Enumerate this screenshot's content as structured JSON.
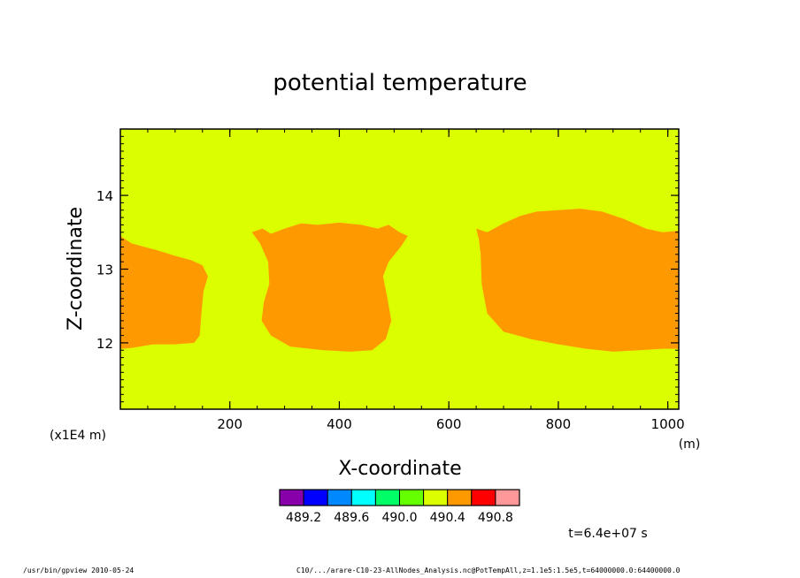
{
  "chart_data": {
    "type": "heatmap",
    "title": "potential temperature",
    "xlabel": "X-coordinate",
    "ylabel": "Z-coordinate",
    "x_unit": "(m)",
    "y_scale_label": "(x1E4 m)",
    "xlim": [
      0,
      1020
    ],
    "ylim": [
      11.1,
      14.9
    ],
    "x_ticks": [
      "200",
      "400",
      "600",
      "800",
      "1000"
    ],
    "x_tick_values": [
      200,
      400,
      600,
      800,
      1000
    ],
    "y_ticks": [
      "12",
      "13",
      "14"
    ],
    "y_tick_values": [
      12,
      13,
      14
    ],
    "background_color": "#dcff00",
    "region_color": "#ff9900",
    "background_level": "490.2 - 490.4",
    "region_level": "490.4 - 490.6",
    "regions": [
      {
        "name": "left",
        "outline": [
          [
            0,
            13.45
          ],
          [
            20,
            13.35
          ],
          [
            45,
            13.3
          ],
          [
            70,
            13.25
          ],
          [
            100,
            13.18
          ],
          [
            130,
            13.12
          ],
          [
            150,
            13.05
          ],
          [
            160,
            12.9
          ],
          [
            152,
            12.7
          ],
          [
            148,
            12.4
          ],
          [
            145,
            12.1
          ],
          [
            135,
            12.0
          ],
          [
            100,
            11.98
          ],
          [
            60,
            11.98
          ],
          [
            20,
            11.93
          ],
          [
            0,
            11.92
          ]
        ]
      },
      {
        "name": "middle",
        "outline": [
          [
            240,
            13.5
          ],
          [
            260,
            13.55
          ],
          [
            275,
            13.48
          ],
          [
            300,
            13.55
          ],
          [
            330,
            13.62
          ],
          [
            360,
            13.6
          ],
          [
            400,
            13.63
          ],
          [
            440,
            13.6
          ],
          [
            470,
            13.55
          ],
          [
            490,
            13.6
          ],
          [
            510,
            13.5
          ],
          [
            525,
            13.45
          ],
          [
            512,
            13.3
          ],
          [
            490,
            13.1
          ],
          [
            480,
            12.9
          ],
          [
            488,
            12.6
          ],
          [
            495,
            12.3
          ],
          [
            485,
            12.05
          ],
          [
            460,
            11.9
          ],
          [
            420,
            11.88
          ],
          [
            370,
            11.9
          ],
          [
            310,
            11.95
          ],
          [
            275,
            12.1
          ],
          [
            258,
            12.3
          ],
          [
            262,
            12.55
          ],
          [
            272,
            12.8
          ],
          [
            270,
            13.1
          ],
          [
            255,
            13.35
          ]
        ]
      },
      {
        "name": "right",
        "outline": [
          [
            650,
            13.55
          ],
          [
            670,
            13.5
          ],
          [
            700,
            13.62
          ],
          [
            730,
            13.72
          ],
          [
            760,
            13.78
          ],
          [
            800,
            13.8
          ],
          [
            840,
            13.82
          ],
          [
            880,
            13.78
          ],
          [
            920,
            13.68
          ],
          [
            960,
            13.55
          ],
          [
            990,
            13.5
          ],
          [
            1020,
            13.52
          ],
          [
            1020,
            11.92
          ],
          [
            990,
            11.92
          ],
          [
            950,
            11.9
          ],
          [
            900,
            11.88
          ],
          [
            850,
            11.92
          ],
          [
            800,
            11.98
          ],
          [
            750,
            12.05
          ],
          [
            700,
            12.15
          ],
          [
            670,
            12.4
          ],
          [
            660,
            12.8
          ],
          [
            658,
            13.2
          ],
          [
            655,
            13.4
          ]
        ]
      }
    ],
    "colorbar": {
      "colors": [
        "#8800aa",
        "#0000ff",
        "#0088ff",
        "#00ffff",
        "#00ff66",
        "#66ff00",
        "#dcff00",
        "#ff9900",
        "#ff0000",
        "#ff9999"
      ],
      "labels": [
        "489.2",
        "489.6",
        "490.0",
        "490.4",
        "490.8"
      ]
    },
    "time_label": "t=6.4e+07 s"
  },
  "footer": {
    "left": "/usr/bin/gpview   2010-05-24",
    "right": "C10/.../arare-C10-23-AllNodes_Analysis.nc@PotTempAll,z=1.1e5:1.5e5,t=64000000.0:64400000.0"
  }
}
